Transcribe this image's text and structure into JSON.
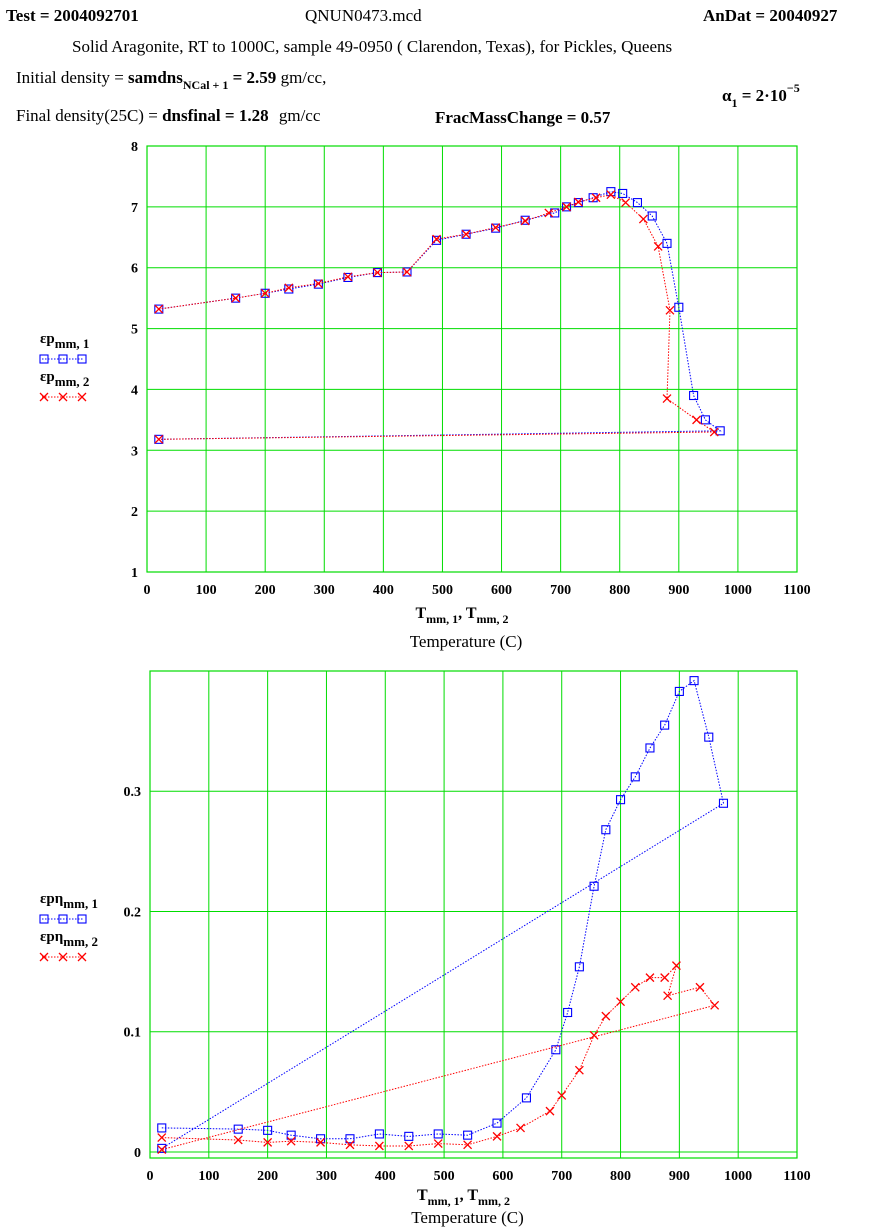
{
  "header": {
    "test_label": "Test = 2004092701",
    "file_name": "QNUN0473.mcd",
    "andat_label": "AnDat = 20040927",
    "description": "Solid Aragonite, RT to 1000C, sample 49-0950 ( Clarendon, Texas),  for Pickles, Queens",
    "initial_density_prefix": "Initial density =",
    "initial_density_var": "samdns",
    "initial_density_sub": "NCal + 1",
    "initial_density_value": "= 2.59",
    "initial_density_unit": "gm/cc,",
    "final_density_prefix": "Final density(25C) =",
    "final_density_expr": "dnsfinal = 1.28",
    "final_density_unit": "gm/cc",
    "frac_mass_change": "FracMassChange = 0.57",
    "alpha_symbol": "α",
    "alpha_sub": "1",
    "alpha_value": "= 2·10",
    "alpha_exp": "−5"
  },
  "colors": {
    "grid": "#00dd00",
    "series1": "#0000ff",
    "series2": "#ff0000"
  },
  "chart_data": [
    {
      "type": "line",
      "xlabel_expr": "Tmm, 1 , Tmm, 2",
      "xlabel_text": "Temperature (C)",
      "xlim": [
        0,
        1100
      ],
      "ylim": [
        1,
        8
      ],
      "xticks": [
        0,
        100,
        200,
        300,
        400,
        500,
        600,
        700,
        800,
        900,
        1000,
        1100
      ],
      "yticks": [
        1,
        2,
        3,
        4,
        5,
        6,
        7,
        8
      ],
      "grid": true,
      "legend": [
        {
          "name": "εpmm, 1",
          "marker": "square"
        },
        {
          "name": "εpmm, 2",
          "marker": "x"
        }
      ],
      "series": [
        {
          "name": "εpmm, 1",
          "marker": "square",
          "x": [
            20,
            150,
            200,
            240,
            290,
            340,
            390,
            440,
            490,
            540,
            590,
            640,
            690,
            710,
            730,
            755,
            785,
            805,
            830,
            855,
            880,
            900,
            925,
            945,
            970,
            20
          ],
          "y": [
            5.32,
            5.5,
            5.58,
            5.65,
            5.73,
            5.84,
            5.92,
            5.93,
            6.45,
            6.55,
            6.65,
            6.78,
            6.9,
            7.0,
            7.07,
            7.15,
            7.25,
            7.22,
            7.07,
            6.85,
            6.4,
            5.35,
            3.9,
            3.5,
            3.32,
            3.18
          ]
        },
        {
          "name": "εpmm, 2",
          "marker": "x",
          "x": [
            20,
            150,
            200,
            240,
            290,
            340,
            390,
            440,
            490,
            540,
            590,
            640,
            680,
            710,
            730,
            760,
            785,
            810,
            840,
            865,
            885,
            880,
            930,
            960,
            20
          ],
          "y": [
            5.32,
            5.5,
            5.58,
            5.67,
            5.74,
            5.85,
            5.92,
            5.93,
            6.47,
            6.55,
            6.66,
            6.77,
            6.9,
            7.0,
            7.08,
            7.15,
            7.2,
            7.07,
            6.8,
            6.35,
            5.3,
            3.85,
            3.5,
            3.3,
            3.18
          ]
        }
      ]
    },
    {
      "type": "line",
      "xlabel_expr": "Tmm, 1 , Tmm, 2",
      "xlabel_text": "Temperature (C)",
      "xlim": [
        0,
        1100
      ],
      "ylim": [
        -0.005,
        0.4
      ],
      "xticks": [
        0,
        100,
        200,
        300,
        400,
        500,
        600,
        700,
        800,
        900,
        1000,
        1100
      ],
      "yticks": [
        0,
        0.1,
        0.2,
        0.3
      ],
      "grid": true,
      "legend": [
        {
          "name": "εpηmm, 1",
          "marker": "square"
        },
        {
          "name": "εpηmm, 2",
          "marker": "x"
        }
      ],
      "series": [
        {
          "name": "εpηmm, 1",
          "marker": "square",
          "x": [
            20,
            150,
            200,
            240,
            290,
            340,
            390,
            440,
            490,
            540,
            590,
            640,
            690,
            710,
            730,
            755,
            775,
            800,
            825,
            850,
            875,
            900,
            925,
            950,
            975,
            20
          ],
          "y": [
            0.02,
            0.019,
            0.018,
            0.014,
            0.011,
            0.011,
            0.015,
            0.013,
            0.015,
            0.014,
            0.024,
            0.045,
            0.085,
            0.116,
            0.154,
            0.221,
            0.268,
            0.293,
            0.312,
            0.336,
            0.355,
            0.383,
            0.392,
            0.345,
            0.29,
            0.003
          ]
        },
        {
          "name": "εpηmm, 2",
          "marker": "x",
          "x": [
            20,
            150,
            200,
            240,
            290,
            340,
            390,
            440,
            490,
            540,
            590,
            630,
            680,
            700,
            730,
            755,
            775,
            800,
            825,
            850,
            875,
            895,
            880,
            935,
            960,
            20
          ],
          "y": [
            0.012,
            0.01,
            0.008,
            0.009,
            0.008,
            0.006,
            0.005,
            0.005,
            0.007,
            0.006,
            0.013,
            0.02,
            0.034,
            0.047,
            0.068,
            0.097,
            0.113,
            0.125,
            0.137,
            0.145,
            0.145,
            0.155,
            0.13,
            0.137,
            0.122,
            0.002
          ]
        }
      ]
    }
  ]
}
